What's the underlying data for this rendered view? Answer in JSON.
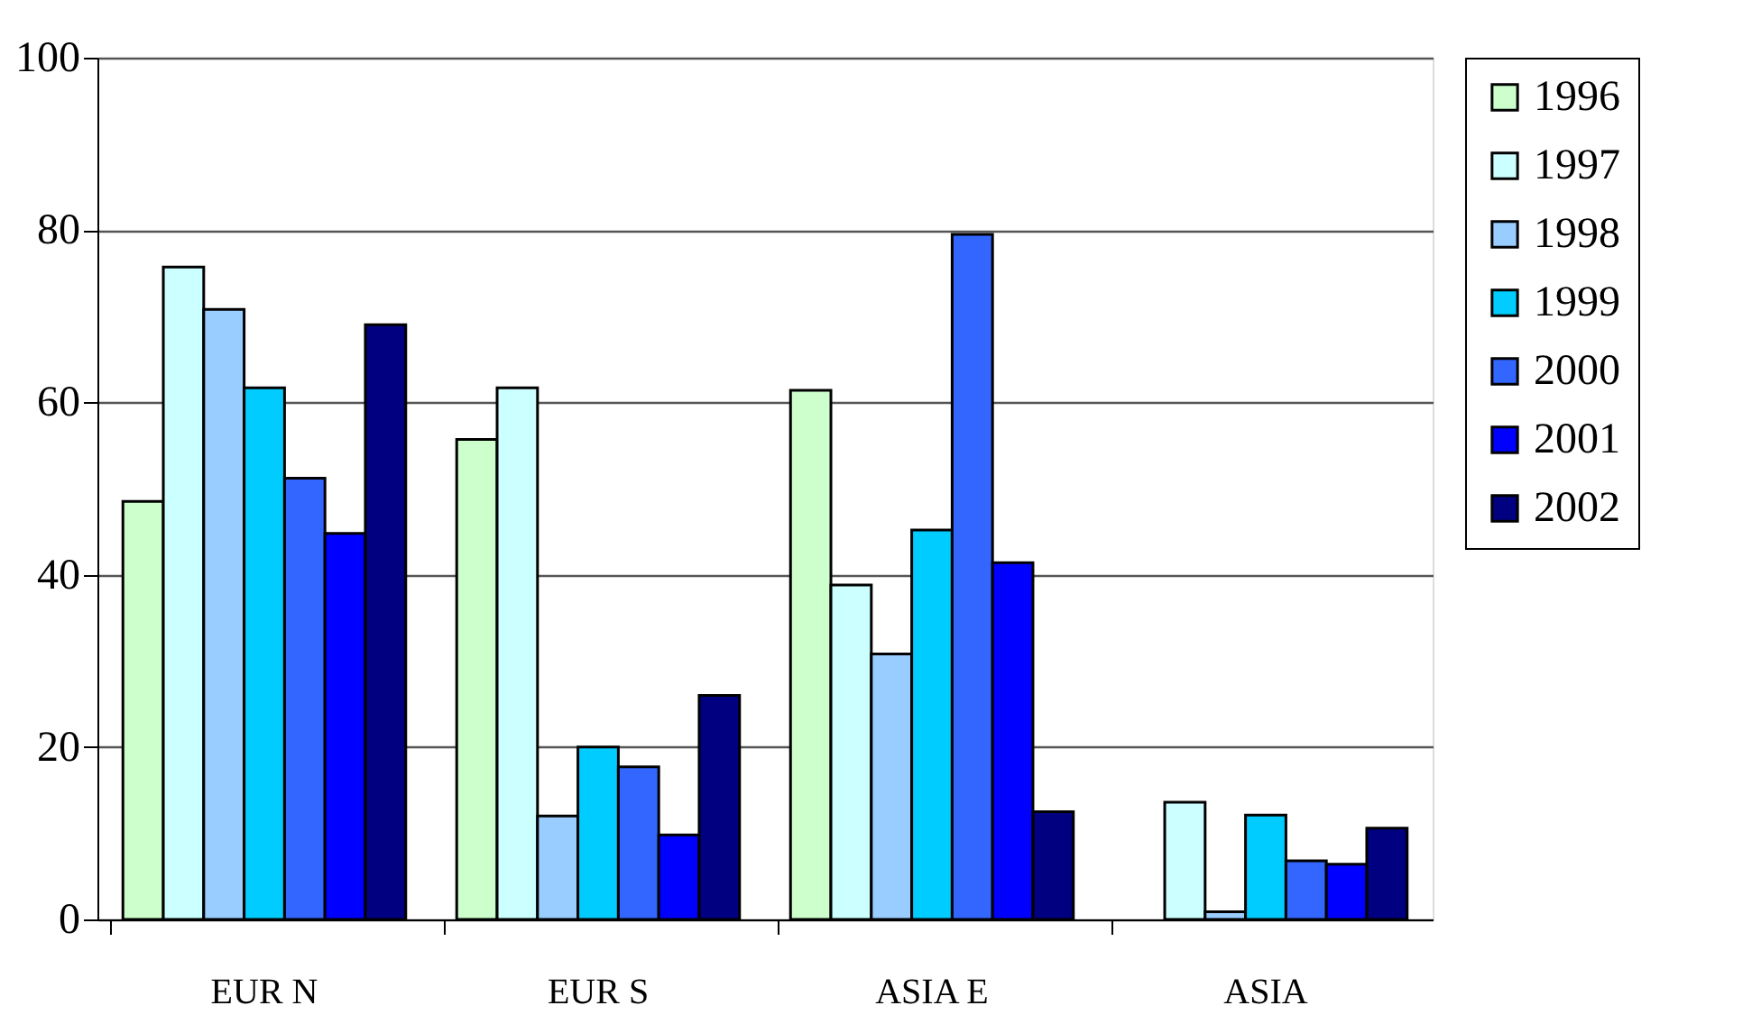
{
  "chart_data": {
    "type": "bar",
    "categories": [
      "EUR  N",
      "EUR  S",
      "ASIA  E",
      "ASIA"
    ],
    "series": [
      {
        "name": "1996",
        "color": "#ccffcc",
        "values": [
          48.5,
          55.7,
          61.4,
          null
        ]
      },
      {
        "name": "1997",
        "color": "#ccffff",
        "values": [
          75.7,
          61.7,
          38.8,
          13.6
        ]
      },
      {
        "name": "1998",
        "color": "#99ccff",
        "values": [
          70.8,
          12.0,
          30.8,
          0.9
        ]
      },
      {
        "name": "1999",
        "color": "#00ccff",
        "values": [
          61.7,
          20.0,
          45.2,
          12.1
        ]
      },
      {
        "name": "2000",
        "color": "#3366ff",
        "values": [
          51.2,
          17.7,
          79.5,
          6.8
        ]
      },
      {
        "name": "2001",
        "color": "#0000ff",
        "values": [
          44.8,
          9.8,
          41.4,
          6.4
        ]
      },
      {
        "name": "2002",
        "color": "#000080",
        "values": [
          69.0,
          26.0,
          12.5,
          10.6
        ]
      }
    ],
    "ylim": [
      0,
      100
    ],
    "yticks": [
      0,
      20,
      40,
      60,
      80,
      100
    ],
    "grid": "y",
    "legend": "right"
  }
}
